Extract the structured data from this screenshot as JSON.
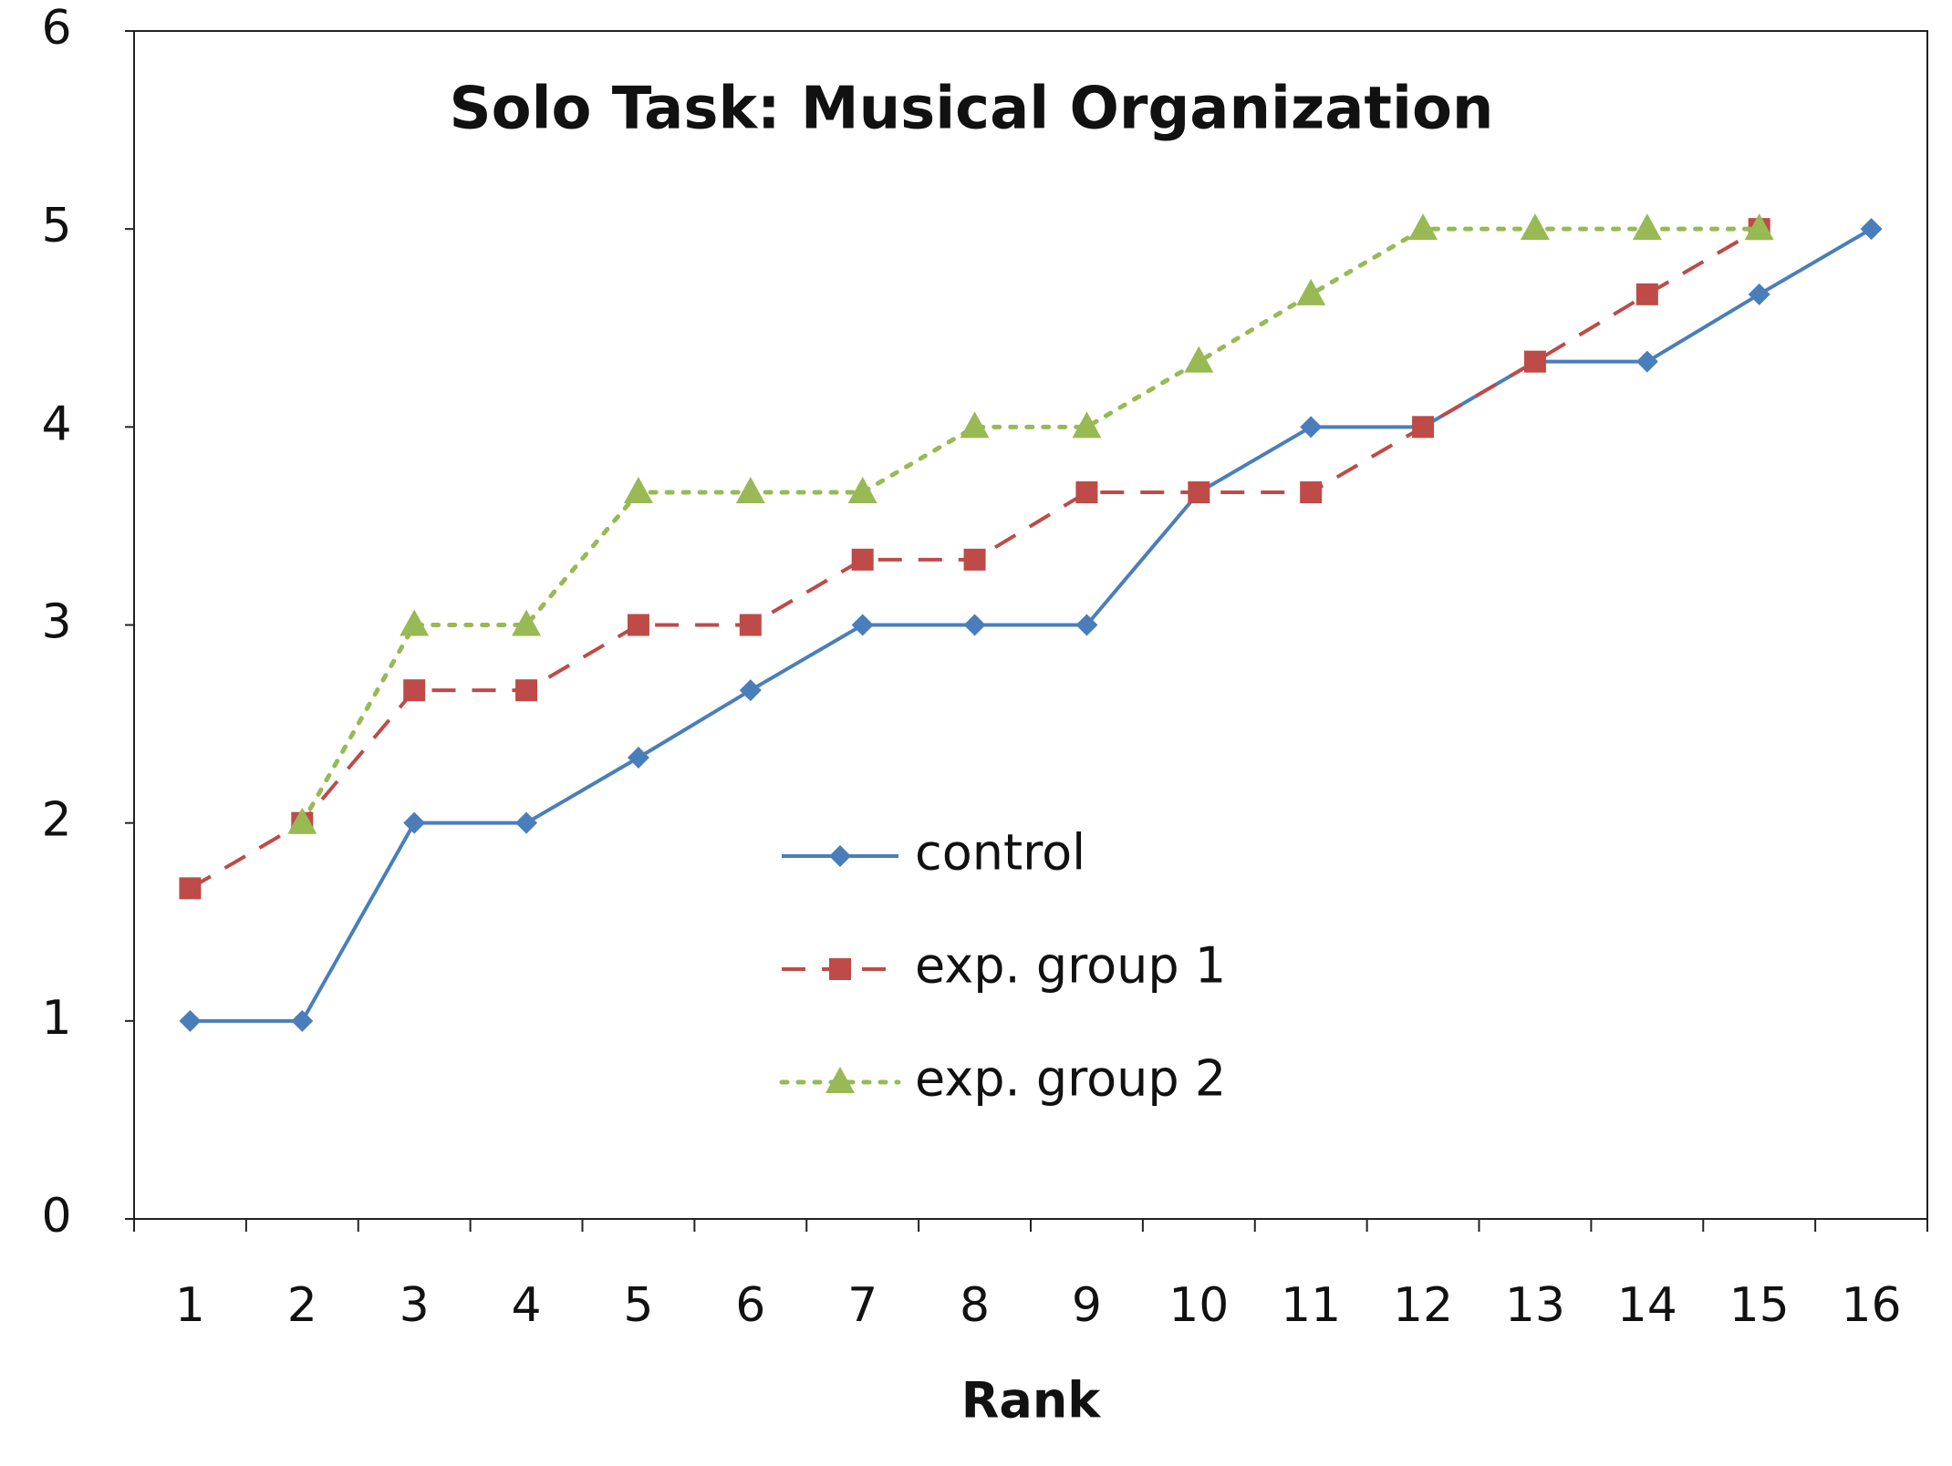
{
  "chart_data": {
    "type": "line",
    "title": "Solo Task: Musical Organization",
    "xlabel": "Rank",
    "categories": [
      "1",
      "2",
      "3",
      "4",
      "5",
      "6",
      "7",
      "8",
      "9",
      "10",
      "11",
      "12",
      "13",
      "14",
      "15",
      "16"
    ],
    "series": [
      {
        "name": "control",
        "color": "#4a7ebb",
        "marker": "diamond",
        "dash": "solid",
        "values": [
          1,
          1,
          2,
          2,
          2.33,
          2.67,
          3,
          3,
          3,
          3.67,
          4,
          4,
          4.33,
          4.33,
          4.67,
          5
        ]
      },
      {
        "name": "exp. group 1",
        "color": "#be4b48",
        "marker": "square",
        "dash": "dashed",
        "values": [
          1.67,
          2,
          2.67,
          2.67,
          3,
          3,
          3.33,
          3.33,
          3.67,
          3.67,
          3.67,
          4,
          4.33,
          4.67,
          5,
          null
        ]
      },
      {
        "name": "exp. group 2",
        "color": "#98b954",
        "marker": "triangle",
        "dash": "dotted",
        "values": [
          null,
          2,
          3,
          3,
          3.67,
          3.67,
          3.67,
          4,
          4,
          4.33,
          4.67,
          5,
          5,
          5,
          5,
          null
        ]
      }
    ],
    "ylim": [
      0,
      6
    ],
    "yticks": [
      0,
      1,
      2,
      3,
      4,
      5,
      6
    ],
    "grid": false
  }
}
